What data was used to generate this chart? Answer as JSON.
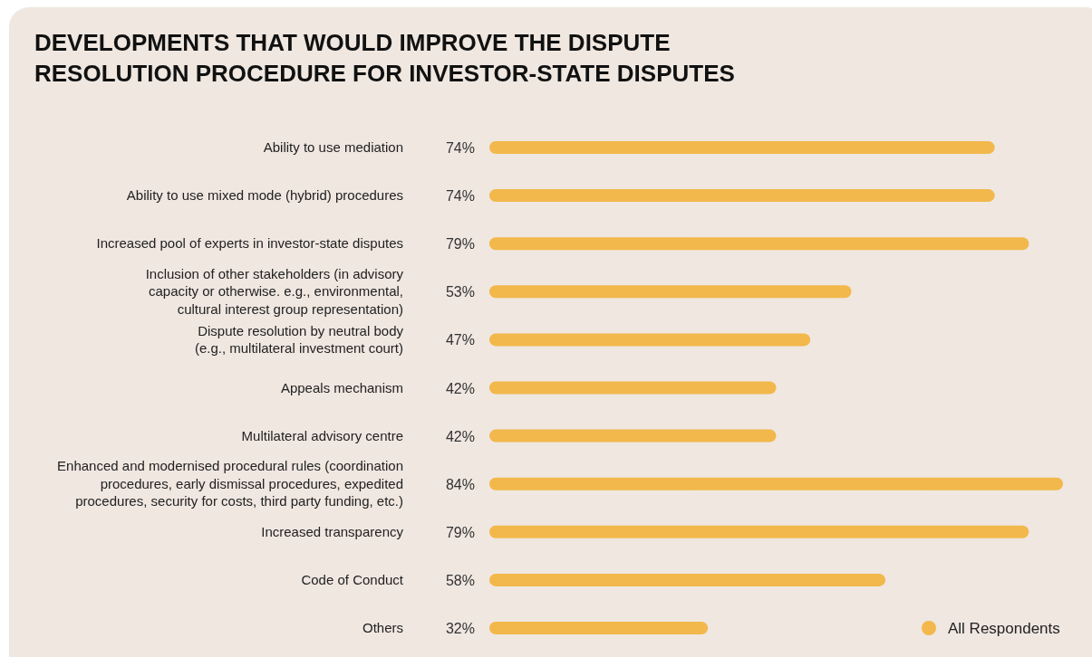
{
  "chart_data": {
    "type": "bar",
    "orientation": "horizontal",
    "title": "DEVELOPMENTS THAT WOULD IMPROVE THE DISPUTE\nRESOLUTION PROCEDURE FOR INVESTOR-STATE DISPUTES",
    "categories": [
      "Ability to use mediation",
      "Ability to use mixed mode (hybrid) procedures",
      "Increased pool of experts in investor-state disputes",
      "Inclusion of other stakeholders (in advisory\ncapacity or otherwise. e.g., environmental,\ncultural interest group representation)",
      "Dispute resolution by neutral body\n(e.g., multilateral investment court)",
      "Appeals mechanism",
      "Multilateral advisory centre",
      "Enhanced and modernised procedural rules (coordination\nprocedures, early dismissal procedures, expedited\nprocedures, security for costs, third party funding, etc.)",
      "Increased transparency",
      "Code of Conduct",
      "Others"
    ],
    "series": [
      {
        "name": "All Respondents",
        "color": "#f2b84b",
        "values": [
          74,
          74,
          79,
          53,
          47,
          42,
          42,
          84,
          79,
          58,
          32
        ],
        "value_labels": [
          "74%",
          "74%",
          "79%",
          "53%",
          "47%",
          "42%",
          "42%",
          "84%",
          "79%",
          "58%",
          "32%"
        ]
      }
    ],
    "xlim": [
      0,
      84
    ],
    "legend": "bottom right"
  }
}
